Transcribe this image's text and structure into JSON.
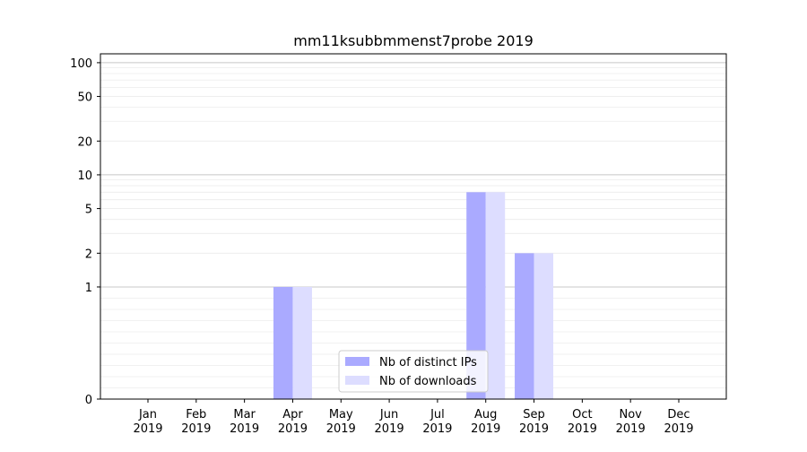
{
  "chart_data": {
    "type": "bar",
    "title": "mm11ksubbmmenst7probe 2019",
    "scale": "symlog",
    "categories": [
      [
        "Jan",
        "2019"
      ],
      [
        "Feb",
        "2019"
      ],
      [
        "Mar",
        "2019"
      ],
      [
        "Apr",
        "2019"
      ],
      [
        "May",
        "2019"
      ],
      [
        "Jun",
        "2019"
      ],
      [
        "Jul",
        "2019"
      ],
      [
        "Aug",
        "2019"
      ],
      [
        "Sep",
        "2019"
      ],
      [
        "Oct",
        "2019"
      ],
      [
        "Nov",
        "2019"
      ],
      [
        "Dec",
        "2019"
      ]
    ],
    "series": [
      {
        "name": "Nb of distinct IPs",
        "color": "#aaaaff",
        "values": [
          0,
          0,
          0,
          1,
          0,
          0,
          0,
          7,
          2,
          0,
          0,
          0
        ]
      },
      {
        "name": "Nb of downloads",
        "color": "#ddddff",
        "values": [
          0,
          0,
          0,
          1,
          0,
          0,
          0,
          7,
          2,
          0,
          0,
          0
        ]
      }
    ],
    "yticks": [
      0,
      1,
      2,
      5,
      10,
      20,
      50,
      100
    ],
    "ylim": [
      0,
      120
    ],
    "grid": true,
    "legend_position": "lower-center"
  }
}
